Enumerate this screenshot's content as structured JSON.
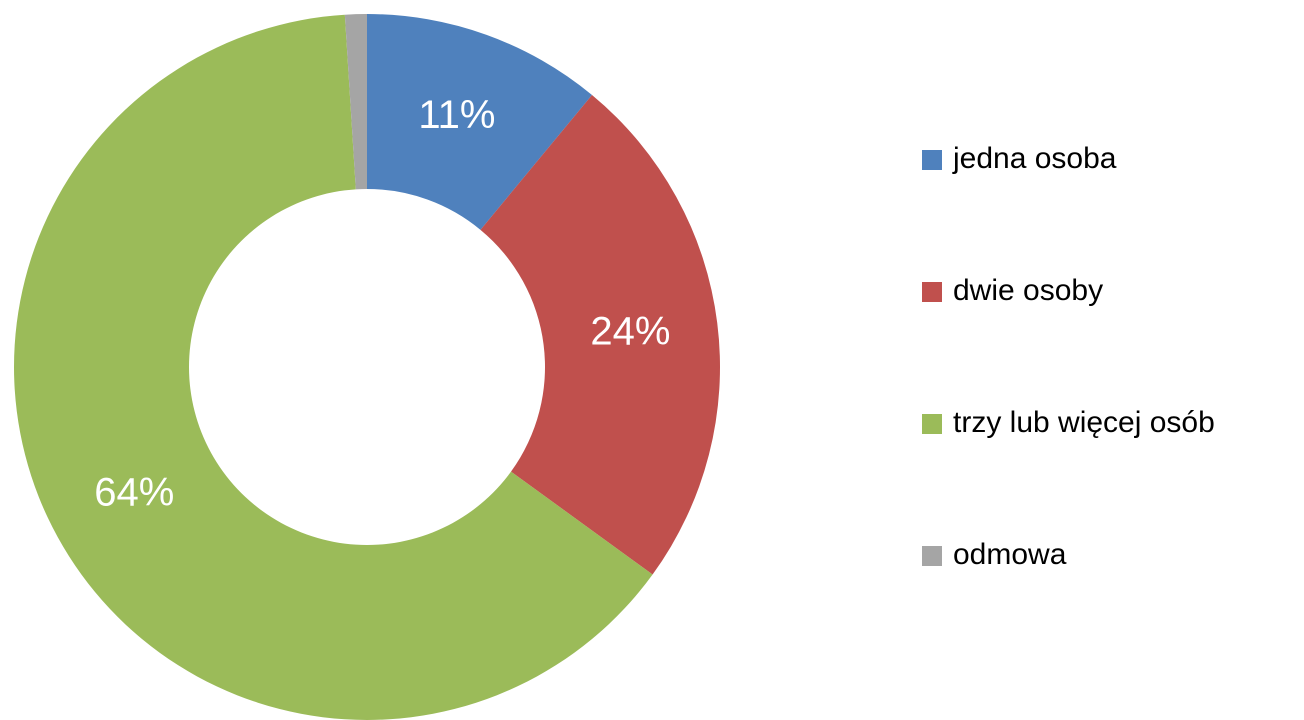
{
  "chart_data": {
    "type": "donut",
    "categories": [
      "jedna osoba",
      "dwie osoby",
      "trzy lub więcej osób",
      "odmowa"
    ],
    "values": [
      11,
      24,
      64,
      1
    ],
    "value_labels": [
      "11%",
      "24%",
      "64%",
      null
    ],
    "colors": [
      "#4f81bd",
      "#c0504d",
      "#9bbb59",
      "#a5a5a5"
    ],
    "legend": "right"
  }
}
